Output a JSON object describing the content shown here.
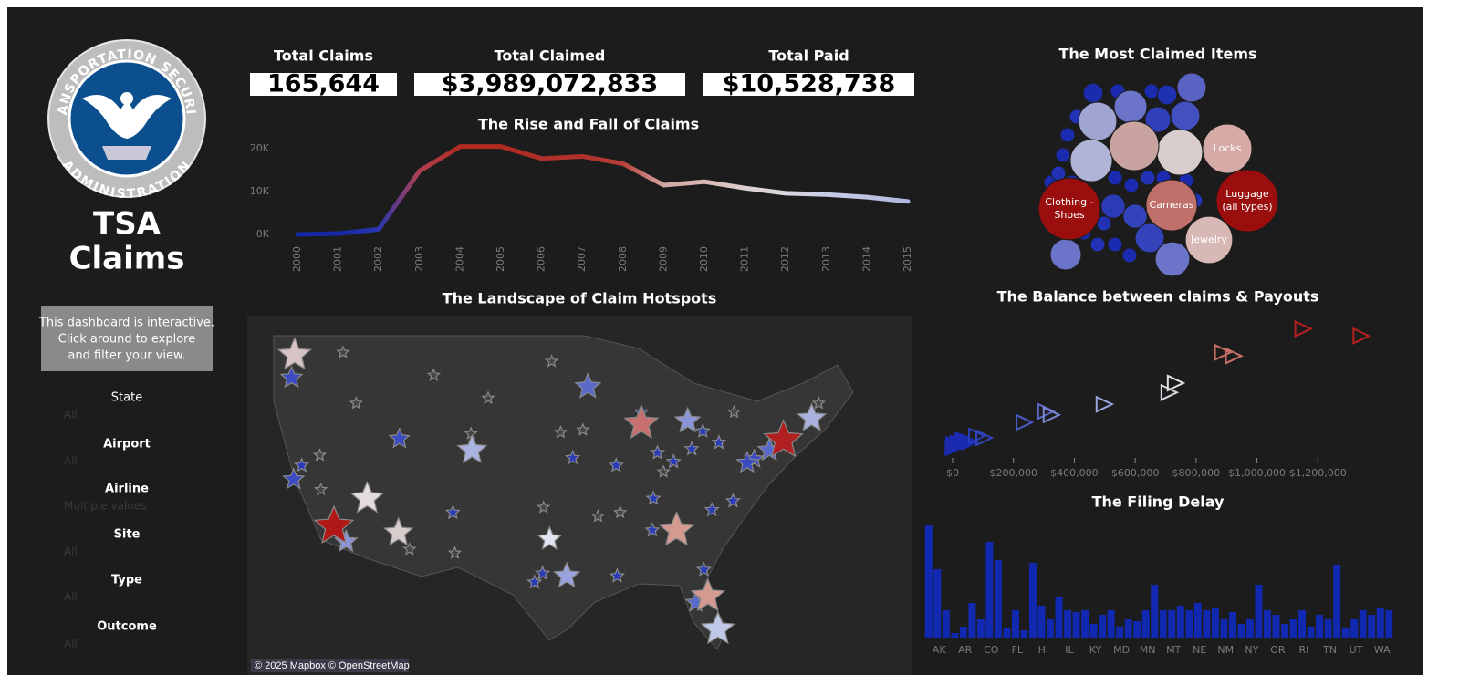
{
  "logo": {
    "top": "TRANSPORTATION SECURITY",
    "bottom": "ADMINISTRATION"
  },
  "sidebar": {
    "title_lines": [
      "TSA",
      "Claims"
    ],
    "info_lines": [
      "This dashboard is interactive.",
      "Click around to explore",
      "and filter your view."
    ],
    "filters": [
      {
        "label": "State",
        "value": "All"
      },
      {
        "label": "Airport",
        "value": "All"
      },
      {
        "label": "Airline",
        "value": "Multiple values"
      },
      {
        "label": "Site",
        "value": "All"
      },
      {
        "label": "Type",
        "value": "All"
      },
      {
        "label": "Outcome",
        "value": "All"
      }
    ]
  },
  "kpis": [
    {
      "label": "Total Claims",
      "value": "165,644"
    },
    {
      "label": "Total Claimed",
      "value": "$3,989,072,833"
    },
    {
      "label": "Total Paid",
      "value": "$10,528,738"
    }
  ],
  "chart_data": [
    {
      "type": "line",
      "title": "The Rise and Fall of Claims",
      "categories": [
        "2000",
        "2001",
        "2002",
        "2003",
        "2004",
        "2005",
        "2006",
        "2007",
        "2008",
        "2009",
        "2010",
        "2011",
        "2012",
        "2013",
        "2014",
        "2015"
      ],
      "values": [
        0,
        200,
        1200,
        14800,
        20500,
        20500,
        17700,
        18200,
        16500,
        11500,
        12300,
        10800,
        9600,
        9300,
        8700,
        7700
      ],
      "point_colors": [
        "#1428a8",
        "#1428a8",
        "#2a36b0",
        "#b04050",
        "#b02a20",
        "#b02a20",
        "#b0302a",
        "#b0302a",
        "#b84038",
        "#d4a8a4",
        "#d8b8b4",
        "#ddd0d0",
        "#d8d8e0",
        "#c8cce4",
        "#bcc2e2",
        "#b0b8e0"
      ],
      "ylim": [
        0,
        22000
      ],
      "yticks": [
        {
          "value": 0,
          "label": "0K"
        },
        {
          "value": 10000,
          "label": "10K"
        },
        {
          "value": 20000,
          "label": "20K"
        }
      ]
    },
    {
      "type": "bubble",
      "title": "The Most Claimed Items",
      "categories": [
        "Luggage (all types)",
        "Clothing - Shoes",
        "Cameras",
        "Locks",
        "Jewelry",
        null,
        null,
        null,
        null,
        null,
        null,
        null,
        null,
        null,
        null,
        null,
        null,
        null,
        null,
        null,
        null,
        null,
        null,
        null,
        null,
        null,
        null,
        null,
        null,
        null,
        null,
        null,
        null,
        null,
        null,
        null,
        null,
        null,
        null,
        null
      ],
      "values": [
        10000,
        9900,
        6800,
        6300,
        5800,
        6300,
        5400,
        4600,
        3800,
        2800,
        2200,
        2200,
        3100,
        2500,
        2200,
        1500,
        1500,
        1700,
        1000,
        1000,
        550,
        550,
        550,
        550,
        550,
        550,
        550,
        550,
        550,
        550,
        550,
        550,
        550,
        550,
        550,
        550,
        550,
        550,
        550,
        550
      ],
      "colors": [
        "#9b0e0e",
        "#9b0e0e",
        "#c0706a",
        "#d6aaa6",
        "#d8b8b5",
        "#c9a3a0",
        "#d8cccc",
        "#b0b5d8",
        "#9fa5d0",
        "#6b74c8",
        "#5a63c4",
        "#4350bf",
        "#6b74c8",
        "#6b74c8",
        "#3344bb",
        "#3344bb",
        "#2b3bb5",
        "#3040b8",
        "#1f30b0",
        "#1a2bae",
        "#1a2bb0",
        "#1a2bb0",
        "#2232b4",
        "#1a2bb0",
        "#1a2bb0",
        "#2232b4",
        "#1a2bb0",
        "#1a2bb0",
        "#2232b4",
        "#1a2bb0",
        "#1a2bb0",
        "#2232b4",
        "#1a2bb0",
        "#1a2bb0",
        "#2232b4",
        "#1a2bb0",
        "#1a2bb0",
        "#2232b4",
        "#1a2bb0",
        "#1a2bb0"
      ]
    },
    {
      "type": "map",
      "title": "The Landscape of Claim Hotspots",
      "attribution": "© 2025 Mapbox © OpenStreetMap",
      "xlim": [
        -127,
        -61
      ],
      "ylim": [
        22.2,
        50.5
      ],
      "lon": [
        -122.3,
        -122.6,
        -118.4,
        -117.2,
        -122.4,
        -115.1,
        -112.0,
        -104.7,
        -111.9,
        -93.2,
        -87.9,
        -83.3,
        -97.0,
        -95.3,
        -84.4,
        -81.3,
        -80.3,
        -82.5,
        -73.8,
        -71.0,
        -75.2,
        -77.4,
        -76.7,
        -116.2,
        -117.5,
        -119.8,
        -106.6,
        -110.9,
        -106.4,
        -108.5,
        -95.9,
        -94.7,
        -90.4,
        -90.0,
        -86.7,
        -90.3,
        -97.6,
        -98.5,
        -97.7,
        -86.3,
        -82.9,
        -81.8,
        -80.2,
        -80.9,
        -78.8,
        -81.7,
        -78.7,
        -87.9,
        -93.7,
        -96.8,
        -103.1,
        -104.8,
        -92.2,
        -86.8,
        -85.7,
        -84.7,
        -70.3,
        -121.6,
        -119.7
      ],
      "lat": [
        47.4,
        45.6,
        33.9,
        32.7,
        37.6,
        36.1,
        33.4,
        39.9,
        40.8,
        44.9,
        42.0,
        42.2,
        32.9,
        30.0,
        33.6,
        28.4,
        25.8,
        27.9,
        40.7,
        42.4,
        39.9,
        38.9,
        39.2,
        43.6,
        47.6,
        39.5,
        35.0,
        32.1,
        31.8,
        45.8,
        41.3,
        39.3,
        38.7,
        35.0,
        36.1,
        30.0,
        35.4,
        29.5,
        30.2,
        39.7,
        40.0,
        41.4,
        40.5,
        35.2,
        35.9,
        30.5,
        42.9,
        42.9,
        41.5,
        46.9,
        44.0,
        41.2,
        34.7,
        33.6,
        38.2,
        39.0,
        43.6,
        38.7,
        36.8
      ],
      "values": [
        5200,
        1600,
        8000,
        1800,
        1500,
        5000,
        3600,
        3800,
        1300,
        2600,
        5600,
        2600,
        2100,
        2700,
        6100,
        5400,
        5300,
        1200,
        7900,
        3500,
        1900,
        1500,
        1000,
        150,
        150,
        150,
        300,
        150,
        150,
        150,
        150,
        300,
        300,
        150,
        300,
        300,
        150,
        300,
        300,
        300,
        300,
        300,
        300,
        300,
        300,
        300,
        150,
        300,
        150,
        150,
        150,
        150,
        150,
        300,
        150,
        300,
        150,
        300,
        150
      ],
      "colors": [
        "#d8c4c4",
        "#3a4cc0",
        "#b01818",
        "#8a94d8",
        "#3a4cc0",
        "#e4dcdc",
        "#d8cccc",
        "#aab2e0",
        "#3a4cc0",
        "#5a6acb",
        "#c87070",
        "#8a94d8",
        "#e0e4f0",
        "#9aa3dd",
        "#d49a90",
        "#d49a90",
        "#c0c8e8",
        "#5a6acb",
        "#b02020",
        "#aab2e0",
        "#5a6acb",
        "#3a4cc0",
        "#3a4cc0",
        "#444444",
        "#444444",
        "#444444",
        "#2a3cb8",
        "#444444",
        "#444444",
        "#444444",
        "#444444",
        "#2a3cb8",
        "#2a3cb8",
        "#444444",
        "#2a3cb8",
        "#2a3cb8",
        "#444444",
        "#2a3cb8",
        "#2a3cb8",
        "#2a3cb8",
        "#2a3cb8",
        "#2a3cb8",
        "#2a3cb8",
        "#2a3cb8",
        "#2a3cb8",
        "#2a3cb8",
        "#444444",
        "#2a3cb8",
        "#444444",
        "#444444",
        "#444444",
        "#444444",
        "#444444",
        "#2a3cb8",
        "#444444",
        "#2a3cb8",
        "#444444",
        "#2a3cb8",
        "#444444"
      ]
    },
    {
      "type": "scatter",
      "title": "The Balance between claims & Payouts",
      "x": [
        1000,
        8000,
        18000,
        40000,
        55000,
        3000,
        33000,
        78000,
        102000,
        234000,
        305000,
        323000,
        497000,
        710000,
        731000,
        886000,
        922000,
        1150000,
        1341000
      ],
      "values": [
        700,
        900,
        1100,
        1300,
        1200,
        1000,
        1300,
        1700,
        1550,
        2860,
        3800,
        3500,
        4400,
        5400,
        6200,
        8800,
        8500,
        10800,
        10200
      ],
      "colors": [
        "#1a2bb0",
        "#1a2bb0",
        "#1a2bb0",
        "#1a2bb0",
        "#1a2bb0",
        "#1a2bb0",
        "#1a2bb0",
        "#2a3cb8",
        "#3344bb",
        "#4a5cc8",
        "#5a6acb",
        "#7a86d0",
        "#9aa3dd",
        "#d8d8e0",
        "#e0e0e0",
        "#c87068",
        "#c87068",
        "#b82020",
        "#b82020"
      ],
      "xlim": [
        0,
        1400000
      ],
      "ylim": [
        0,
        12000
      ],
      "xticks": [
        {
          "value": 0,
          "label": "$0"
        },
        {
          "value": 200000,
          "label": "$200,000"
        },
        {
          "value": 400000,
          "label": "$400,000"
        },
        {
          "value": 600000,
          "label": "$600,000"
        },
        {
          "value": 800000,
          "label": "$800,000"
        },
        {
          "value": 1000000,
          "label": "$1,000,000"
        },
        {
          "value": 1200000,
          "label": "$1,200,000"
        }
      ]
    },
    {
      "type": "bar",
      "title": "The Filing Delay",
      "color": "#1029b0",
      "categories": [
        "AK",
        null,
        null,
        "AR",
        null,
        null,
        "CO",
        null,
        null,
        "FL",
        null,
        null,
        "HI",
        null,
        null,
        "IL",
        null,
        null,
        "KY",
        null,
        null,
        "MD",
        null,
        null,
        "MN",
        null,
        null,
        "MT",
        null,
        null,
        "NE",
        null,
        null,
        "NM",
        null,
        null,
        "NY",
        null,
        null,
        "OR",
        null,
        null,
        "RI",
        null,
        null,
        "TN",
        null,
        null,
        "UT",
        null,
        null,
        "WA",
        null,
        null
      ],
      "values": [
        124,
        75,
        30,
        5,
        12,
        38,
        20,
        105,
        85,
        10,
        30,
        8,
        82,
        35,
        20,
        45,
        30,
        28,
        30,
        15,
        25,
        30,
        12,
        20,
        18,
        30,
        58,
        30,
        30,
        35,
        30,
        38,
        30,
        32,
        20,
        28,
        15,
        20,
        58,
        30,
        25,
        15,
        20,
        30,
        12,
        25,
        20,
        80,
        10,
        20,
        30,
        25,
        32,
        30
      ],
      "ylim": [
        0,
        130
      ]
    }
  ]
}
